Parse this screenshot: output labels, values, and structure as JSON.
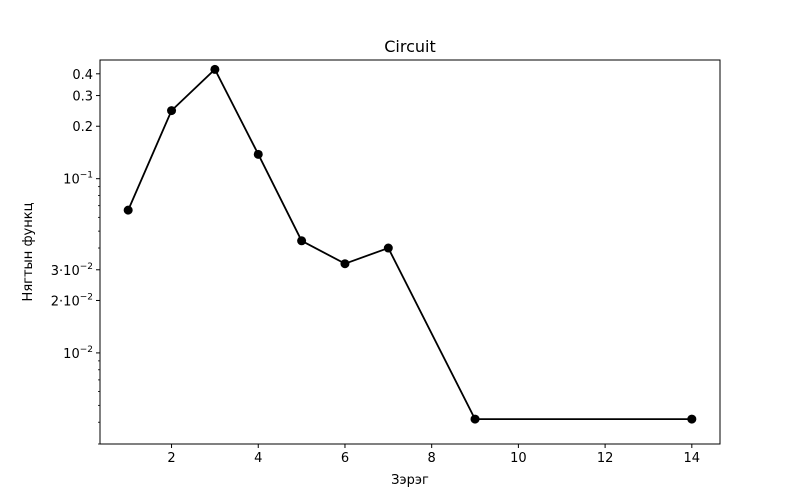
{
  "chart_data": {
    "type": "line",
    "title": "Circuit",
    "xlabel": "Зэрэг",
    "ylabel": "Нягтын функц",
    "x_scale": "linear",
    "y_scale": "log",
    "xlim": [
      0.35,
      14.65
    ],
    "ylim": [
      0.003,
      0.48
    ],
    "x_ticks": [
      2,
      4,
      6,
      8,
      10,
      12,
      14
    ],
    "x_tick_labels": [
      "2",
      "4",
      "6",
      "8",
      "10",
      "12",
      "14"
    ],
    "y_ticks": [
      0.4,
      0.3,
      0.2,
      0.1,
      0.03,
      0.02,
      0.01
    ],
    "y_tick_labels": [
      {
        "type": "plain",
        "text": "0.4"
      },
      {
        "type": "plain",
        "text": "0.3"
      },
      {
        "type": "plain",
        "text": "0.2"
      },
      {
        "type": "power",
        "base": "10",
        "exp": "−1"
      },
      {
        "type": "sci",
        "mant": "3",
        "base": "10",
        "exp": "−2"
      },
      {
        "type": "sci",
        "mant": "2",
        "base": "10",
        "exp": "−2"
      },
      {
        "type": "power",
        "base": "10",
        "exp": "−2"
      }
    ],
    "grid": false,
    "series": [
      {
        "color": "#000000",
        "marker": "circle",
        "x": [
          1,
          2,
          3,
          4,
          5,
          6,
          7,
          9,
          14
        ],
        "y": [
          0.066,
          0.246,
          0.424,
          0.138,
          0.044,
          0.0325,
          0.04,
          0.00417,
          0.00417
        ]
      }
    ]
  }
}
